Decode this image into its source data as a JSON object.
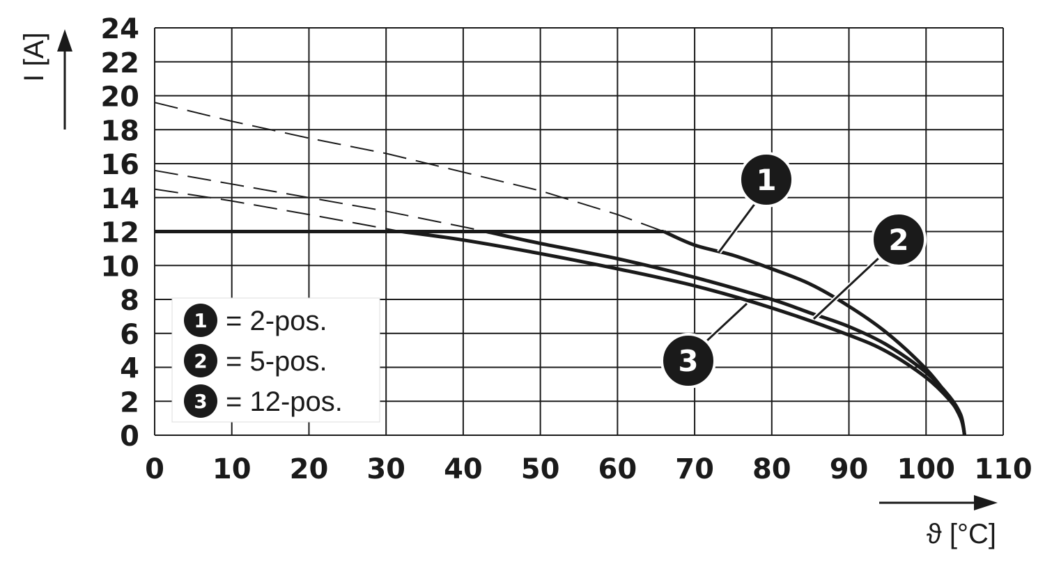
{
  "chart_data": {
    "type": "line",
    "xlabel": "ϑ [°C]",
    "ylabel": "I [A]",
    "xlim": [
      0,
      110
    ],
    "ylim": [
      0,
      24
    ],
    "x_ticks": [
      "0",
      "10",
      "20",
      "30",
      "40",
      "50",
      "60",
      "70",
      "80",
      "90",
      "100",
      "110"
    ],
    "y_ticks": [
      "0",
      "2",
      "4",
      "6",
      "8",
      "10",
      "12",
      "14",
      "16",
      "18",
      "20",
      "22",
      "24"
    ],
    "grid": true,
    "current_limit": {
      "x": [
        0,
        66
      ],
      "y": [
        12,
        12
      ]
    },
    "series": [
      {
        "marker": "1",
        "color": "#1a1a1a",
        "x": [
          66,
          70,
          75,
          80,
          85,
          90,
          95,
          100,
          103,
          104.5,
          105
        ],
        "y": [
          12,
          11.2,
          10.6,
          9.8,
          8.9,
          7.6,
          6.0,
          3.9,
          2.2,
          1.0,
          0
        ],
        "derating_x": [
          0,
          10,
          20,
          30,
          40,
          50,
          60,
          66
        ],
        "derating_y": [
          19.6,
          18.5,
          17.5,
          16.6,
          15.5,
          14.4,
          13.0,
          12.0
        ]
      },
      {
        "marker": "2",
        "color": "#1a1a1a",
        "x": [
          43,
          50,
          60,
          70,
          80,
          85,
          90,
          95,
          100,
          103,
          104.5,
          105
        ],
        "y": [
          12,
          11.3,
          10.4,
          9.3,
          8.0,
          7.2,
          6.4,
          5.3,
          3.7,
          2.3,
          1.2,
          0
        ],
        "derating_x": [
          0,
          10,
          20,
          30,
          43
        ],
        "derating_y": [
          15.6,
          14.8,
          14.0,
          13.2,
          12.0
        ]
      },
      {
        "marker": "3",
        "color": "#1a1a1a",
        "x": [
          32,
          40,
          50,
          60,
          70,
          80,
          90,
          95,
          100,
          103,
          104.5,
          105
        ],
        "y": [
          12,
          11.5,
          10.7,
          9.8,
          8.8,
          7.5,
          5.9,
          4.9,
          3.4,
          2.1,
          1.1,
          0
        ],
        "derating_x": [
          0,
          10,
          20,
          32
        ],
        "derating_y": [
          14.5,
          13.8,
          13.0,
          12.0
        ]
      }
    ],
    "legend": {
      "position": "bottom-left",
      "entries": [
        {
          "marker": "1",
          "text": "= 2-pos."
        },
        {
          "marker": "2",
          "text": "= 5-pos."
        },
        {
          "marker": "3",
          "text": "= 12-pos."
        }
      ]
    }
  }
}
